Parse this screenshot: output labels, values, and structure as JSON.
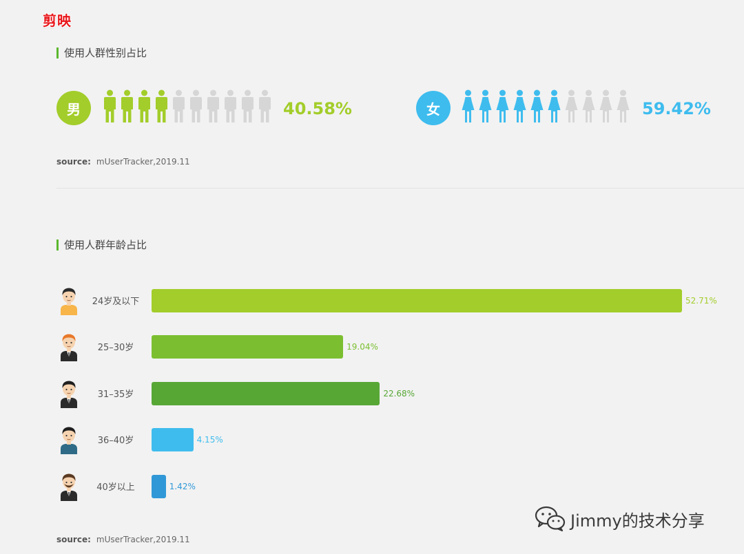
{
  "app_title": "剪映",
  "gender_section": {
    "title": "使用人群性别占比",
    "source_label": "source:",
    "source_value": "mUserTracker,2019.11"
  },
  "age_section": {
    "title": "使用人群年龄占比",
    "source_label": "source:",
    "source_value": "mUserTracker,2019.11"
  },
  "watermark": "Jimmy的技术分享",
  "colors": {
    "male": "#a3cd2a",
    "female": "#3ebcee",
    "inactive": "#d6d6d6"
  },
  "chart_data": [
    {
      "type": "pictograph",
      "title": "使用人群性别占比",
      "categories": [
        "男",
        "女"
      ],
      "values": [
        40.58,
        59.42
      ],
      "labels": [
        "40.58%",
        "59.42%"
      ],
      "icons_total": 10,
      "icons_filled": [
        4,
        6
      ],
      "colors": [
        "#a3cd2a",
        "#3ebcee"
      ]
    },
    {
      "type": "bar",
      "orientation": "horizontal",
      "title": "使用人群年龄占比",
      "categories": [
        "24岁及以下",
        "25–30岁",
        "31–35岁",
        "36–40岁",
        "40岁以上"
      ],
      "values": [
        52.71,
        19.04,
        22.68,
        4.15,
        1.42
      ],
      "labels": [
        "52.71%",
        "19.04%",
        "22.68%",
        "4.15%",
        "1.42%"
      ],
      "colors": [
        "#a3cd2a",
        "#7bbf30",
        "#57a735",
        "#3ebcee",
        "#3198d8"
      ],
      "xlim": [
        0,
        52.71
      ],
      "grid": false
    }
  ]
}
